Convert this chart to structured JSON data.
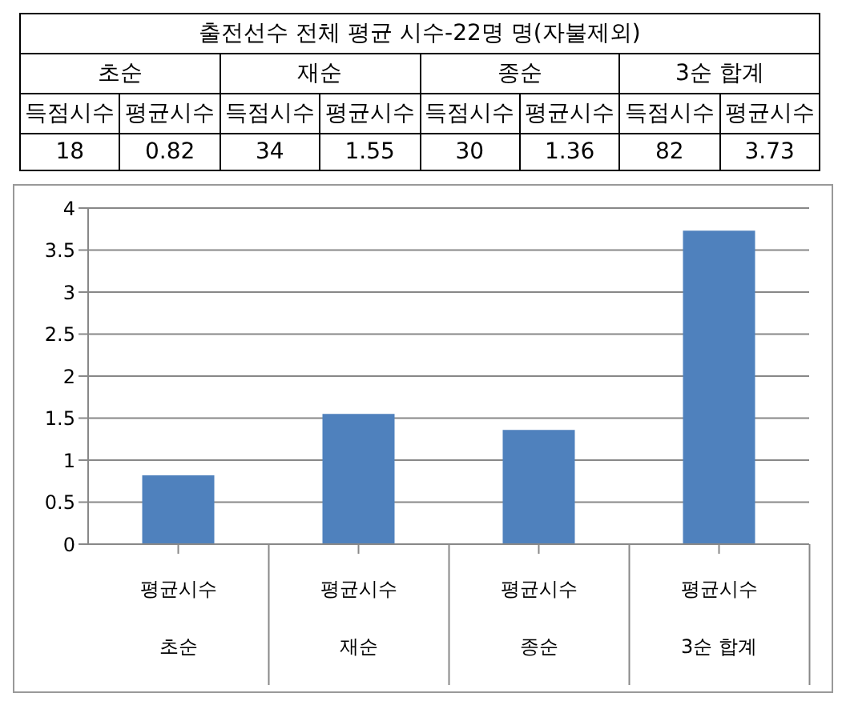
{
  "chart_data": [
    {
      "type": "other",
      "title": "출전선수 전체 평균 시수-22명 명(자불제외)",
      "categories": [
        "초순",
        "재순",
        "종순",
        "3순 합계"
      ],
      "annotations": [
        "득점시수",
        "평균시수",
        "득점시수",
        "평균시수",
        "득점시수",
        "평균시수",
        "득점시수",
        "평균시수",
        "18",
        "0.82",
        "34",
        "1.55",
        "30",
        "1.36",
        "82",
        "3.73"
      ]
    },
    {
      "type": "bar",
      "categories": [
        "초순",
        "재순",
        "종순",
        "3순 합계"
      ],
      "series": [
        {
          "name": "평균시수",
          "color": "#4f81bd",
          "values": [
            0.82,
            1.55,
            1.36,
            3.73
          ]
        }
      ],
      "ylim": [
        0,
        4
      ],
      "yticks": [
        0,
        0.5,
        1,
        1.5,
        2,
        2.5,
        3,
        3.5,
        4
      ],
      "grid": "y",
      "legend": false
    }
  ]
}
